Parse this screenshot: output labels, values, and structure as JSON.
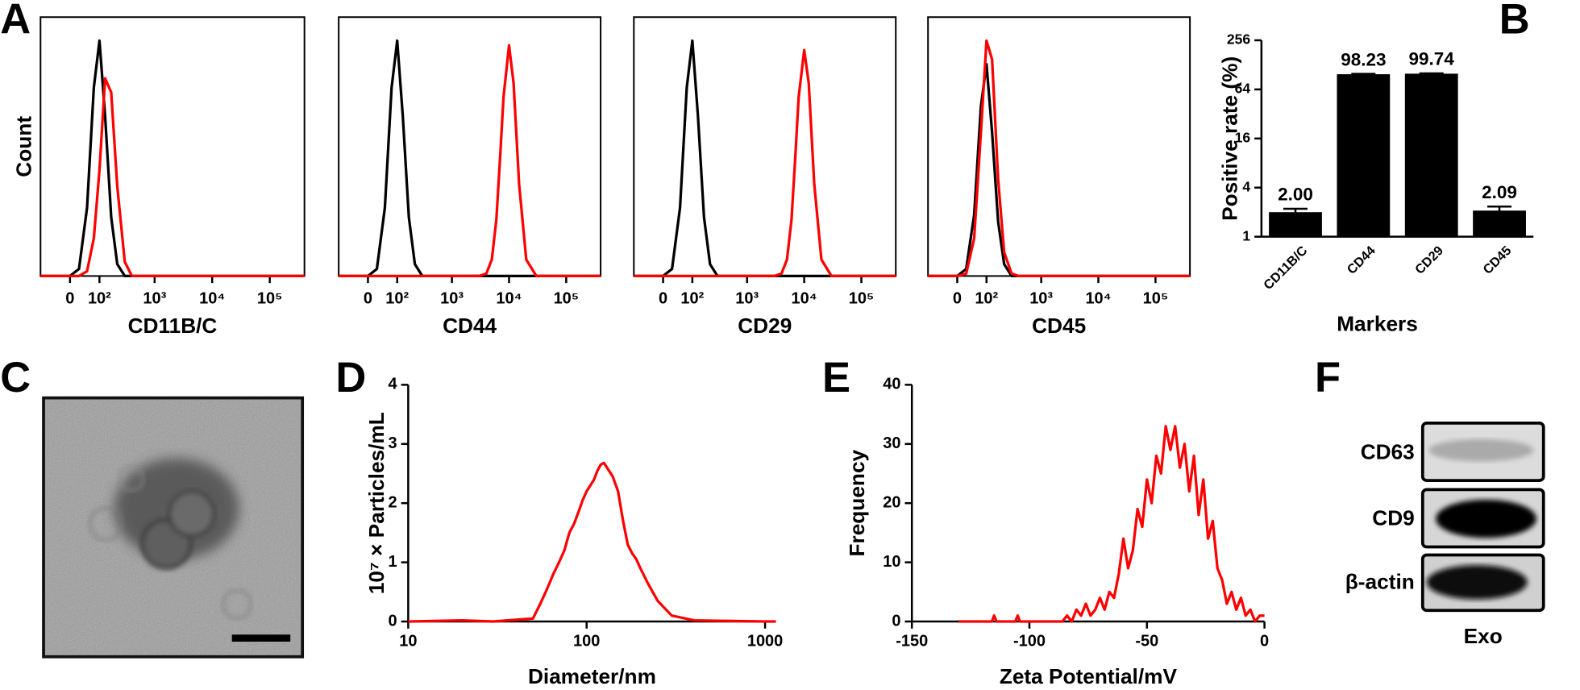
{
  "panel_labels": [
    "A",
    "B",
    "C",
    "D",
    "E",
    "F"
  ],
  "blot": {
    "rows": [
      "CD63",
      "CD9",
      "β-actin"
    ],
    "lane": "Exo"
  },
  "chart_data": [
    {
      "type": "line",
      "xscale": "biexponential",
      "xlabel": "CD11B/C",
      "ylabel": "Count",
      "x": [
        -100,
        -50,
        0,
        25,
        50,
        75,
        100,
        130,
        170,
        220,
        300,
        400,
        600,
        1000,
        2000,
        3000,
        4000,
        5000,
        6000,
        7000,
        8000,
        10000,
        12000,
        15000,
        20000,
        30000,
        100000,
        400000
      ],
      "xlim": [
        -100,
        400000
      ],
      "xticks": [
        0,
        {
          "value": 100,
          "label": "10²"
        },
        {
          "value": 1000,
          "label": "10³"
        },
        {
          "value": 10000,
          "label": "10⁴"
        },
        {
          "value": 100000,
          "label": "10⁵"
        }
      ],
      "ylim": [
        0,
        110
      ],
      "series": [
        {
          "color": "#000000",
          "values": [
            0,
            0,
            0,
            3,
            29,
            80,
            100,
            68,
            25,
            5,
            0,
            0,
            0,
            0,
            0,
            0,
            0,
            0,
            0,
            0,
            0,
            0,
            0,
            0,
            0,
            0,
            0,
            0
          ]
        },
        {
          "color": "#ff0000",
          "values": [
            0,
            0,
            0,
            0,
            2,
            16,
            45,
            84,
            78,
            38,
            6,
            0,
            0,
            0,
            0,
            0,
            0,
            0,
            0,
            0,
            0,
            0,
            0,
            0,
            0,
            0,
            0,
            0
          ]
        }
      ]
    },
    {
      "type": "line",
      "xscale": "biexponential",
      "xlabel": "CD44",
      "x": [
        -100,
        -50,
        0,
        25,
        50,
        75,
        100,
        130,
        170,
        220,
        300,
        400,
        600,
        1000,
        2000,
        3000,
        4000,
        5000,
        6000,
        7000,
        8000,
        10000,
        12000,
        15000,
        20000,
        30000,
        100000,
        400000
      ],
      "xlim": [
        -100,
        400000
      ],
      "xticks": [
        0,
        {
          "value": 100,
          "label": "10²"
        },
        {
          "value": 1000,
          "label": "10³"
        },
        {
          "value": 10000,
          "label": "10⁴"
        },
        {
          "value": 100000,
          "label": "10⁵"
        }
      ],
      "ylim": [
        0,
        110
      ],
      "series": [
        {
          "color": "#000000",
          "values": [
            0,
            0,
            0,
            3,
            29,
            80,
            100,
            68,
            25,
            5,
            0,
            0,
            0,
            0,
            0,
            0,
            0,
            0,
            0,
            0,
            0,
            0,
            0,
            0,
            0,
            0,
            0,
            0
          ]
        },
        {
          "color": "#ff0000",
          "values": [
            0,
            0,
            0,
            0,
            0,
            0,
            0,
            0,
            0,
            0,
            0,
            0,
            0,
            0,
            0,
            0,
            1,
            7,
            24,
            51,
            76,
            98,
            82,
            39,
            7,
            0,
            0,
            0
          ]
        }
      ]
    },
    {
      "type": "line",
      "xscale": "biexponential",
      "xlabel": "CD29",
      "x": [
        -100,
        -50,
        0,
        25,
        50,
        75,
        100,
        130,
        170,
        220,
        300,
        400,
        600,
        1000,
        2000,
        3000,
        4000,
        5000,
        6000,
        7000,
        8000,
        10000,
        12000,
        15000,
        20000,
        30000,
        100000,
        400000
      ],
      "xlim": [
        -100,
        400000
      ],
      "xticks": [
        0,
        {
          "value": 100,
          "label": "10²"
        },
        {
          "value": 1000,
          "label": "10³"
        },
        {
          "value": 10000,
          "label": "10⁴"
        },
        {
          "value": 100000,
          "label": "10⁵"
        }
      ],
      "ylim": [
        0,
        110
      ],
      "series": [
        {
          "color": "#000000",
          "values": [
            0,
            0,
            0,
            3,
            29,
            80,
            100,
            68,
            25,
            5,
            0,
            0,
            0,
            0,
            0,
            0,
            0,
            0,
            0,
            0,
            0,
            0,
            0,
            0,
            0,
            0,
            0,
            0
          ]
        },
        {
          "color": "#ff0000",
          "values": [
            0,
            0,
            0,
            0,
            0,
            0,
            0,
            0,
            0,
            0,
            0,
            0,
            0,
            0,
            0,
            0,
            1,
            7,
            24,
            51,
            76,
            96,
            82,
            39,
            7,
            0,
            0,
            0
          ]
        }
      ]
    },
    {
      "type": "line",
      "xscale": "biexponential",
      "xlabel": "CD45",
      "x": [
        -100,
        -50,
        0,
        25,
        50,
        75,
        100,
        130,
        170,
        220,
        300,
        400,
        600,
        1000,
        2000,
        3000,
        4000,
        5000,
        6000,
        7000,
        8000,
        10000,
        12000,
        15000,
        20000,
        30000,
        100000,
        400000
      ],
      "xlim": [
        -100,
        400000
      ],
      "xticks": [
        0,
        {
          "value": 100,
          "label": "10²"
        },
        {
          "value": 1000,
          "label": "10³"
        },
        {
          "value": 10000,
          "label": "10⁴"
        },
        {
          "value": 100000,
          "label": "10⁵"
        }
      ],
      "ylim": [
        0,
        110
      ],
      "series": [
        {
          "color": "#000000",
          "values": [
            0,
            0,
            0,
            3,
            26,
            72,
            90,
            61,
            23,
            5,
            0,
            0,
            0,
            0,
            0,
            0,
            0,
            0,
            0,
            0,
            0,
            0,
            0,
            0,
            0,
            0,
            0,
            0
          ]
        },
        {
          "color": "#ff0000",
          "values": [
            0,
            0,
            0,
            1,
            16,
            61,
            100,
            92,
            41,
            10,
            1,
            0,
            0,
            0,
            0,
            0,
            0,
            0,
            0,
            0,
            0,
            0,
            0,
            0,
            0,
            0,
            0,
            0
          ]
        }
      ]
    },
    {
      "type": "bar",
      "categories": [
        "CD11B/C",
        "CD44",
        "CD29",
        "CD45"
      ],
      "values": [
        2,
        98.23,
        99.74,
        2.09
      ],
      "value_labels": [
        "2.00",
        "98.23",
        "99.74",
        "2.09"
      ],
      "errors": [
        0.2,
        1,
        1,
        0.25
      ],
      "color": "#000000",
      "yscale": "log",
      "ylim": [
        1,
        256
      ],
      "yticks": [
        1,
        4,
        16,
        64,
        256
      ],
      "xlabel": "Markers",
      "ylabel": "Positive rate (%)"
    },
    {
      "type": "line",
      "xscale": "log",
      "color": "#ff0000",
      "x": [
        10,
        20,
        30,
        40,
        50,
        55,
        60,
        65,
        70,
        75,
        80,
        85,
        90,
        95,
        100,
        105,
        110,
        115,
        120,
        125,
        130,
        140,
        150,
        160,
        170,
        180,
        190,
        200,
        220,
        250,
        300,
        400,
        600,
        1000,
        1150
      ],
      "values": [
        0,
        0.02,
        0,
        0.03,
        0.05,
        0.3,
        0.55,
        0.8,
        1.0,
        1.2,
        1.5,
        1.65,
        1.85,
        2.05,
        2.2,
        2.3,
        2.4,
        2.55,
        2.65,
        2.68,
        2.6,
        2.45,
        2.2,
        1.7,
        1.3,
        1.15,
        1.05,
        0.9,
        0.65,
        0.35,
        0.1,
        0.02,
        0.01,
        0,
        0
      ],
      "xlim": [
        10,
        1150
      ],
      "xticks": [
        10,
        100,
        1000
      ],
      "ylim": [
        0,
        4
      ],
      "yticks": [
        0,
        1,
        2,
        3,
        4
      ],
      "xlabel": "Diameter/nm",
      "ylabel": "10⁷ × Particles/mL"
    },
    {
      "type": "line",
      "color": "#ff0000",
      "x": [
        -130,
        -116,
        -115,
        -114,
        -106,
        -105,
        -104,
        -86,
        -84,
        -82,
        -80,
        -78,
        -76,
        -74,
        -72,
        -70,
        -68,
        -66,
        -64,
        -62,
        -60,
        -58,
        -56,
        -54,
        -52,
        -50,
        -48,
        -46,
        -44,
        -42,
        -40,
        -38,
        -36,
        -34,
        -32,
        -30,
        -28,
        -26,
        -24,
        -22,
        -20,
        -18,
        -16,
        -14,
        -12,
        -10,
        -8,
        -6,
        -4,
        -2,
        0
      ],
      "values": [
        0,
        0,
        1,
        0,
        0,
        1,
        0,
        0,
        1,
        0,
        2,
        1,
        3,
        1,
        2,
        4,
        2,
        5,
        4,
        8,
        14,
        9,
        12,
        19,
        16,
        24,
        20,
        28,
        25,
        33,
        29,
        33,
        26,
        30,
        22,
        28,
        18,
        24,
        14,
        17,
        9,
        7,
        3,
        5,
        2,
        4,
        1,
        2,
        0,
        1,
        1
      ],
      "xlim": [
        -150,
        0
      ],
      "xticks": [
        -150,
        -100,
        -50,
        0
      ],
      "ylim": [
        0,
        40
      ],
      "yticks": [
        0,
        10,
        20,
        30,
        40
      ],
      "xlabel": "Zeta Potential/mV",
      "ylabel": "Frequency"
    }
  ]
}
